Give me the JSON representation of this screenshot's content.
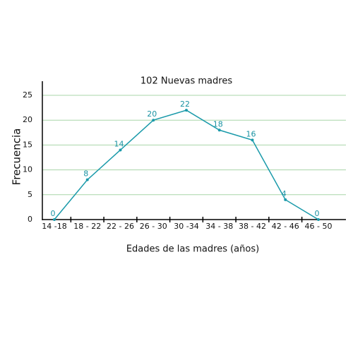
{
  "chart_data": {
    "type": "line",
    "title": "102 Nuevas madres",
    "x_label": "Edades de las madres (años)",
    "y_label": "Frecuencia",
    "categories": [
      "14 -18",
      "18 - 22",
      "22 - 26",
      "26 - 30",
      "30 -34",
      "34 - 38",
      "38 - 42",
      "42 - 46",
      "46 - 50"
    ],
    "series": [
      {
        "name": "Frecuencia",
        "color": "#1a9aaa",
        "values": [
          0,
          8,
          14,
          20,
          22,
          18,
          16,
          4,
          0
        ]
      }
    ],
    "ylim": [
      0,
      25
    ],
    "yticks": [
      0,
      5,
      10,
      15,
      20,
      25
    ],
    "grid": true,
    "grid_color": "#a8d5a8"
  }
}
